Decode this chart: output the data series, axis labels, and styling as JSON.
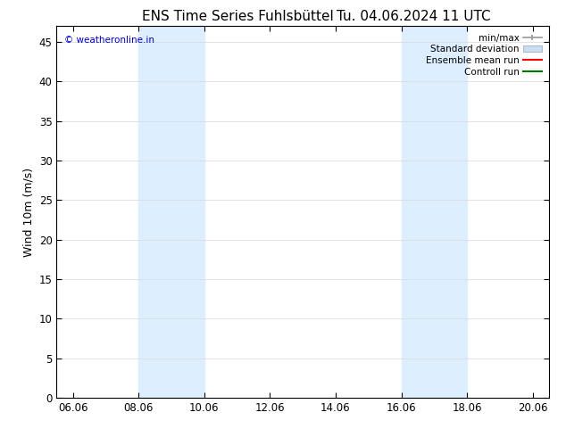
{
  "title_left": "ENS Time Series Fuhlsbüttel",
  "title_right": "Tu. 04.06.2024 11 UTC",
  "ylabel": "Wind 10m (m/s)",
  "watermark": "© weatheronline.in",
  "watermark_color": "#0000cc",
  "xticklabels": [
    "06.06",
    "08.06",
    "10.06",
    "12.06",
    "14.06",
    "16.06",
    "18.06",
    "20.06"
  ],
  "xtick_values": [
    0,
    2,
    4,
    6,
    8,
    10,
    12,
    14
  ],
  "ylim": [
    0,
    47
  ],
  "yticks": [
    0,
    5,
    10,
    15,
    20,
    25,
    30,
    35,
    40,
    45
  ],
  "xlim": [
    -0.5,
    14.5
  ],
  "background_color": "#ffffff",
  "plot_bg_color": "#ffffff",
  "shaded_bands": [
    {
      "xmin": 2.0,
      "xmax": 4.0,
      "color": "#ddeeff"
    },
    {
      "xmin": 10.0,
      "xmax": 12.0,
      "color": "#ddeeff"
    }
  ],
  "legend_entries": [
    {
      "label": "min/max",
      "type": "minmax",
      "color": "#999999",
      "lw": 1.2
    },
    {
      "label": "Standard deviation",
      "type": "patch",
      "color": "#ccddef",
      "edgecolor": "#aabbcc",
      "lw": 0.8
    },
    {
      "label": "Ensemble mean run",
      "type": "line",
      "color": "#ff0000",
      "lw": 1.5
    },
    {
      "label": "Controll run",
      "type": "line",
      "color": "#007700",
      "lw": 1.5
    }
  ],
  "title_fontsize": 11,
  "label_fontsize": 9,
  "tick_fontsize": 8.5,
  "legend_fontsize": 7.5,
  "border_color": "#000000",
  "grid_color": "#dddddd",
  "font_family": "DejaVu Sans"
}
